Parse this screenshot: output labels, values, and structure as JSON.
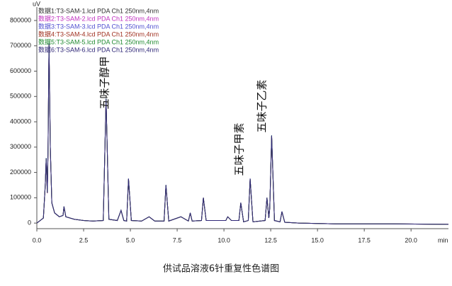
{
  "chart_data": {
    "type": "line",
    "y_label": "uV",
    "x_label": "min",
    "caption": "供试品溶液6针重复性色谱图",
    "annotations": [
      "五味子醇甲",
      "五味子甲素",
      "五味子乙素"
    ],
    "xlim": [
      0,
      22
    ],
    "ylim": [
      -22000,
      853000
    ],
    "xticks": [
      {
        "value": 0,
        "label": "0.0"
      },
      2.5,
      {
        "value": 5,
        "label": "5.0"
      },
      7.5,
      {
        "value": 10,
        "label": "10.0"
      },
      12.5,
      {
        "value": 15,
        "label": "15.0"
      },
      17.5,
      {
        "value": 20,
        "label": "20.0"
      }
    ],
    "yticks": [
      0,
      100000,
      200000,
      300000,
      400000,
      500000,
      600000,
      700000,
      800000
    ],
    "x": [
      0,
      0.35,
      0.45,
      0.5,
      0.56,
      0.6,
      0.65,
      0.72,
      0.8,
      0.95,
      1.2,
      1.4,
      1.45,
      1.55,
      2.0,
      2.5,
      3.0,
      3.55,
      3.7,
      3.85,
      4.3,
      4.5,
      4.65,
      4.8,
      4.9,
      5.05,
      5.6,
      6.0,
      6.3,
      6.8,
      6.9,
      7.05,
      7.7,
      8.1,
      8.2,
      8.3,
      8.8,
      8.9,
      9.05,
      10.1,
      10.2,
      10.4,
      10.8,
      10.9,
      11.05,
      11.3,
      11.4,
      11.55,
      12.2,
      12.3,
      12.4,
      12.45,
      12.55,
      12.7,
      13.0,
      13.1,
      13.25,
      14,
      16,
      19,
      22
    ],
    "series": [
      {
        "name": "数据1:T3-SAM-1.lcd PDA Ch1 250nm,4nm",
        "color": "#303030",
        "values": [
          0,
          20000,
          150000,
          255000,
          120000,
          300000,
          710000,
          300000,
          80000,
          40000,
          25000,
          30000,
          65000,
          25000,
          15000,
          10000,
          8000,
          10000,
          490000,
          15000,
          10000,
          50000,
          10000,
          8000,
          175000,
          10000,
          8000,
          25000,
          8000,
          8000,
          150000,
          8000,
          25000,
          8000,
          40000,
          8000,
          10000,
          100000,
          10000,
          10000,
          25000,
          10000,
          10000,
          80000,
          5000,
          10000,
          175000,
          5000,
          10000,
          100000,
          20000,
          60000,
          345000,
          10000,
          5000,
          45000,
          3000,
          0,
          -3000,
          -3000,
          -5000
        ]
      },
      {
        "name": "数据2:T3-SAM-2.lcd PDA Ch1 250nm,4nm",
        "color": "#c030c0",
        "values": [
          0,
          20000,
          148000,
          252000,
          118000,
          298000,
          705000,
          298000,
          79000,
          40000,
          25000,
          30000,
          64000,
          25000,
          15000,
          10000,
          8000,
          10000,
          487000,
          15000,
          10000,
          49000,
          10000,
          8000,
          173000,
          10000,
          8000,
          25000,
          8000,
          8000,
          148000,
          8000,
          25000,
          8000,
          39000,
          8000,
          10000,
          99000,
          10000,
          10000,
          25000,
          10000,
          10000,
          79000,
          5000,
          10000,
          173000,
          5000,
          10000,
          99000,
          20000,
          59000,
          342000,
          10000,
          5000,
          44000,
          3000,
          0,
          -3000,
          -3000,
          -5000
        ]
      },
      {
        "name": "数据3:T3-SAM-3.lcd PDA Ch1 250nm,4nm",
        "color": "#5050d0",
        "values": [
          0,
          20000,
          152000,
          257000,
          121000,
          302000,
          712000,
          302000,
          81000,
          40000,
          25000,
          30000,
          66000,
          25000,
          15000,
          10000,
          8000,
          10000,
          492000,
          15000,
          10000,
          51000,
          10000,
          8000,
          176000,
          10000,
          8000,
          25000,
          8000,
          8000,
          151000,
          8000,
          25000,
          8000,
          41000,
          8000,
          10000,
          101000,
          10000,
          10000,
          25000,
          10000,
          10000,
          81000,
          5000,
          10000,
          176000,
          5000,
          10000,
          101000,
          20000,
          61000,
          347000,
          10000,
          5000,
          46000,
          3000,
          0,
          -3000,
          -3000,
          -5000
        ]
      },
      {
        "name": "数据4:T3-SAM-4.lcd PDA Ch1 250nm,4nm",
        "color": "#a03020",
        "values": [
          0,
          20000,
          149000,
          254000,
          119000,
          299000,
          708000,
          299000,
          80000,
          40000,
          25000,
          30000,
          65000,
          25000,
          15000,
          10000,
          8000,
          10000,
          489000,
          15000,
          10000,
          50000,
          10000,
          8000,
          174000,
          10000,
          8000,
          25000,
          8000,
          8000,
          149000,
          8000,
          25000,
          8000,
          40000,
          8000,
          10000,
          100000,
          10000,
          10000,
          25000,
          10000,
          10000,
          80000,
          5000,
          10000,
          174000,
          5000,
          10000,
          100000,
          20000,
          60000,
          344000,
          10000,
          5000,
          45000,
          3000,
          0,
          -3000,
          -3000,
          -5000
        ]
      },
      {
        "name": "数据5:T3-SAM-5.lcd PDA Ch1 250nm,4nm",
        "color": "#208a30",
        "values": [
          0,
          20000,
          151000,
          256000,
          120000,
          301000,
          711000,
          301000,
          80000,
          40000,
          25000,
          30000,
          65000,
          25000,
          15000,
          10000,
          8000,
          10000,
          491000,
          15000,
          10000,
          50000,
          10000,
          8000,
          175000,
          10000,
          8000,
          25000,
          8000,
          8000,
          150000,
          8000,
          25000,
          8000,
          40000,
          8000,
          10000,
          100000,
          10000,
          10000,
          25000,
          10000,
          10000,
          80000,
          5000,
          10000,
          175000,
          5000,
          10000,
          100000,
          20000,
          60000,
          346000,
          10000,
          5000,
          45000,
          3000,
          0,
          -3000,
          -3000,
          -5000
        ]
      },
      {
        "name": "数据6:T3-SAM-6.lcd PDA Ch1 250nm,4nm",
        "color": "#302878",
        "values": [
          0,
          20000,
          150000,
          255000,
          120000,
          300000,
          709000,
          300000,
          80000,
          40000,
          25000,
          30000,
          65000,
          25000,
          15000,
          10000,
          8000,
          10000,
          490000,
          15000,
          10000,
          50000,
          10000,
          8000,
          175000,
          10000,
          8000,
          25000,
          8000,
          8000,
          150000,
          8000,
          25000,
          8000,
          40000,
          8000,
          10000,
          100000,
          10000,
          10000,
          25000,
          10000,
          10000,
          80000,
          5000,
          10000,
          175000,
          5000,
          10000,
          100000,
          20000,
          60000,
          345000,
          10000,
          5000,
          45000,
          3000,
          0,
          -3000,
          -3000,
          -5000
        ]
      }
    ]
  }
}
